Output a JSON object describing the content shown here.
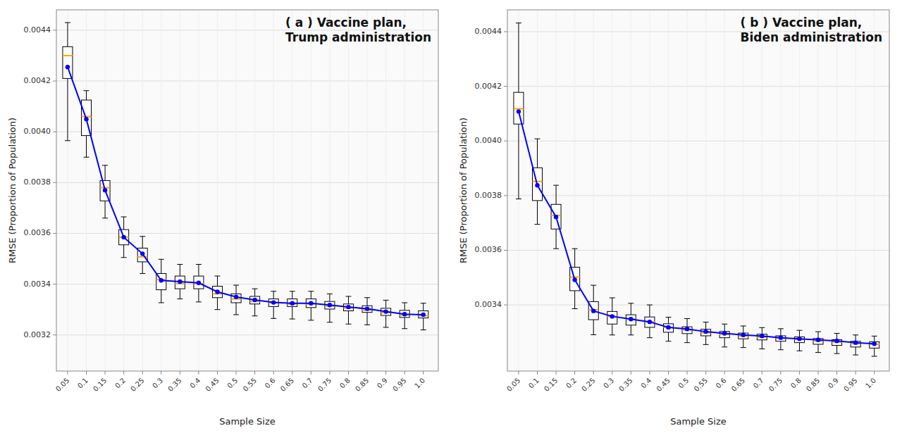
{
  "chart_data": [
    {
      "type": "box",
      "title": "( a ) Vaccine plan,\nTrump administration",
      "xlabel": "Sample Size",
      "ylabel": "RMSE (Proportion of Population)",
      "x": [
        0.05,
        0.1,
        0.15,
        0.2,
        0.25,
        0.3,
        0.35,
        0.4,
        0.45,
        0.5,
        0.55,
        0.6,
        0.65,
        0.7,
        0.75,
        0.8,
        0.85,
        0.9,
        0.95,
        1.0
      ],
      "xlim": [
        0.02,
        1.04
      ],
      "xticks": [
        0.05,
        0.1,
        0.15,
        0.2,
        0.25,
        0.3,
        0.35,
        0.4,
        0.45,
        0.5,
        0.55,
        0.6,
        0.65,
        0.7,
        0.75,
        0.8,
        0.85,
        0.9,
        0.95,
        {
          "value": 1.0,
          "label": "1.0"
        }
      ],
      "ylim": [
        0.003058,
        0.00448
      ],
      "yticks": [
        0.0032,
        0.0034,
        0.0036,
        0.0038,
        {
          "value": 0.004,
          "label": "0.0040"
        },
        0.0042,
        0.0044
      ],
      "grid": true,
      "series": [
        {
          "type": "box",
          "color": "#000000",
          "q1": [
            0.00421,
            0.003985,
            0.003728,
            0.003555,
            0.003488,
            0.003378,
            0.003382,
            0.003382,
            0.003347,
            0.003327,
            0.003322,
            0.003312,
            0.003312,
            0.003308,
            0.003302,
            0.003295,
            0.003289,
            0.003277,
            0.003269,
            0.003267
          ],
          "q3": [
            0.004335,
            0.004125,
            0.003808,
            0.003615,
            0.003542,
            0.003442,
            0.003432,
            0.003432,
            0.003392,
            0.003362,
            0.003352,
            0.003342,
            0.003342,
            0.003342,
            0.003332,
            0.003322,
            0.003315,
            0.003305,
            0.003297,
            0.003295
          ],
          "whislo": [
            0.003965,
            0.0039,
            0.00366,
            0.003505,
            0.003442,
            0.003327,
            0.003342,
            0.00333,
            0.0033,
            0.00328,
            0.003275,
            0.003265,
            0.003263,
            0.003258,
            0.00325,
            0.003243,
            0.00324,
            0.00323,
            0.003225,
            0.00322
          ],
          "whishi": [
            0.00443,
            0.004162,
            0.003868,
            0.003665,
            0.003588,
            0.003498,
            0.003478,
            0.003478,
            0.003432,
            0.003396,
            0.003382,
            0.003372,
            0.003372,
            0.003372,
            0.003362,
            0.003352,
            0.003347,
            0.003337,
            0.003327,
            0.003325
          ]
        },
        {
          "type": "median",
          "color": "#FFA500",
          "values": [
            0.0043,
            0.00406,
            0.00378,
            0.003585,
            0.003508,
            0.003418,
            0.003402,
            0.003402,
            0.003362,
            0.003342,
            0.003332,
            0.003326,
            0.003322,
            0.003322,
            0.003314,
            0.003306,
            0.003298,
            0.003288,
            0.003278,
            0.003276
          ]
        },
        {
          "type": "line",
          "color": "#0000FF",
          "marker": "circle",
          "values": [
            0.004255,
            0.00405,
            0.00377,
            0.003585,
            0.00352,
            0.003415,
            0.00341,
            0.003405,
            0.00337,
            0.00335,
            0.003338,
            0.003328,
            0.003325,
            0.003325,
            0.003318,
            0.00331,
            0.003303,
            0.003292,
            0.003282,
            0.00328
          ]
        }
      ]
    },
    {
      "type": "box",
      "title": "( b ) Vaccine plan,\nBiden administration",
      "xlabel": "Sample Size",
      "ylabel": "RMSE (Proportion of Population)",
      "x": [
        0.05,
        0.1,
        0.15,
        0.2,
        0.25,
        0.3,
        0.35,
        0.4,
        0.45,
        0.5,
        0.55,
        0.6,
        0.65,
        0.7,
        0.75,
        0.8,
        0.85,
        0.9,
        0.95,
        1.0
      ],
      "xlim": [
        0.02,
        1.04
      ],
      "xticks": [
        0.05,
        0.1,
        0.15,
        0.2,
        0.25,
        0.3,
        0.35,
        0.4,
        0.45,
        0.5,
        0.55,
        0.6,
        0.65,
        0.7,
        0.75,
        0.8,
        0.85,
        0.9,
        0.95,
        {
          "value": 1.0,
          "label": "1.0"
        }
      ],
      "ylim": [
        0.003158,
        0.00448
      ],
      "yticks": [
        0.0034,
        0.0036,
        0.0038,
        {
          "value": 0.004,
          "label": "0.0040"
        },
        0.0042,
        0.0044
      ],
      "grid": true,
      "series": [
        {
          "type": "box",
          "color": "#000000",
          "q1": [
            0.004062,
            0.003782,
            0.003678,
            0.003452,
            0.003346,
            0.00333,
            0.003326,
            0.003318,
            0.0033,
            0.003295,
            0.003287,
            0.00328,
            0.003276,
            0.003272,
            0.003267,
            0.003262,
            0.003256,
            0.003252,
            0.003246,
            0.003242
          ],
          "q3": [
            0.004178,
            0.003902,
            0.003768,
            0.003538,
            0.003412,
            0.003376,
            0.003364,
            0.003356,
            0.003331,
            0.00332,
            0.003311,
            0.003303,
            0.003297,
            0.003293,
            0.003287,
            0.003283,
            0.003277,
            0.003273,
            0.003267,
            0.003265
          ],
          "whislo": [
            0.003788,
            0.003695,
            0.003606,
            0.003386,
            0.003291,
            0.00329,
            0.00329,
            0.00328,
            0.003267,
            0.003262,
            0.003255,
            0.003246,
            0.003244,
            0.003239,
            0.003236,
            0.003232,
            0.003226,
            0.003222,
            0.003217,
            0.003212
          ],
          "whishi": [
            0.004432,
            0.004008,
            0.003838,
            0.003606,
            0.003472,
            0.003426,
            0.003406,
            0.0034,
            0.003355,
            0.00335,
            0.003337,
            0.00333,
            0.003323,
            0.003317,
            0.003313,
            0.003307,
            0.003302,
            0.003296,
            0.00329,
            0.003286
          ]
        },
        {
          "type": "median",
          "color": "#FFA500",
          "values": [
            0.004118,
            0.003852,
            0.003728,
            0.003502,
            0.003382,
            0.003358,
            0.003348,
            0.003338,
            0.003318,
            0.003308,
            0.003298,
            0.003292,
            0.003286,
            0.003282,
            0.003278,
            0.003274,
            0.003268,
            0.003264,
            0.003258,
            0.003256
          ]
        },
        {
          "type": "line",
          "color": "#0000FF",
          "marker": "circle",
          "values": [
            0.004108,
            0.003838,
            0.003722,
            0.003492,
            0.003378,
            0.003358,
            0.003348,
            0.003338,
            0.003318,
            0.003312,
            0.003302,
            0.003296,
            0.00329,
            0.003286,
            0.00328,
            0.003276,
            0.003272,
            0.003268,
            0.003262,
            0.003258
          ]
        }
      ]
    }
  ]
}
